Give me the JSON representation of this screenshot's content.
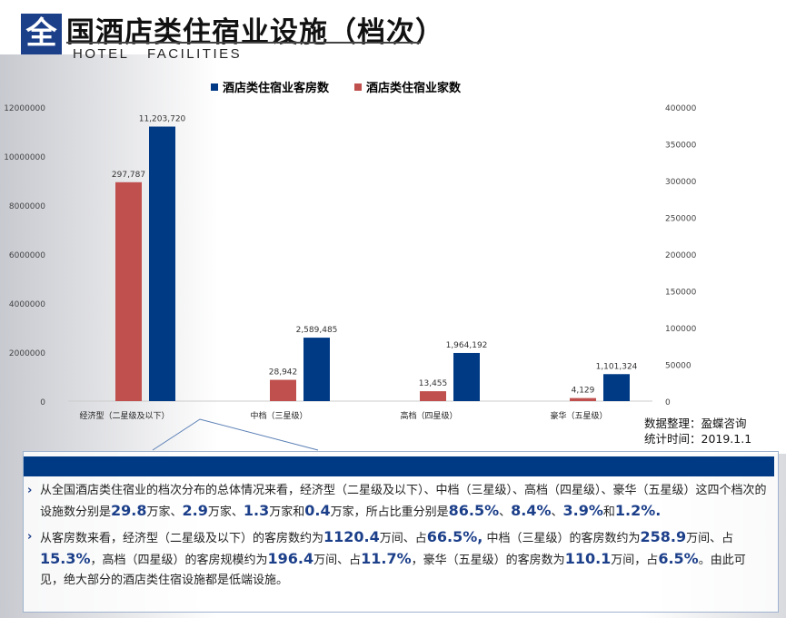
{
  "header": {
    "logo_char": "全",
    "title": "国酒店类住宿业设施（档次）",
    "subtitle": "HOTEL   FACILITIES"
  },
  "colors": {
    "rooms": "#003a85",
    "establishments": "#c0504d"
  },
  "chart_data": {
    "type": "bar",
    "categories": [
      "经济型（二星级及以下）",
      "中档（三星级）",
      "高档（四星级）",
      "豪华（五星级）"
    ],
    "series": [
      {
        "name": "酒店类住宿业家数",
        "axis": "right",
        "values": [
          297787,
          28942,
          13455,
          4129
        ],
        "labels": [
          "297,787",
          "28,942",
          "13,455",
          "4,129"
        ]
      },
      {
        "name": "酒店类住宿业客房数",
        "axis": "left",
        "values": [
          11203720,
          2589485,
          1964192,
          1101324
        ],
        "labels": [
          "11,203,720",
          "2,589,485",
          "1,964,192",
          "1,101,324"
        ]
      }
    ],
    "legend_order": [
      "酒店类住宿业客房数",
      "酒店类住宿业家数"
    ],
    "legend_position": "top",
    "y_left": {
      "ylim": [
        0,
        12000000
      ],
      "ticks": [
        "0",
        "2000000",
        "4000000",
        "6000000",
        "8000000",
        "10000000",
        "12000000"
      ]
    },
    "y_right": {
      "ylim": [
        0,
        400000
      ],
      "ticks": [
        "0",
        "50000",
        "100000",
        "150000",
        "200000",
        "250000",
        "300000",
        "350000",
        "400000"
      ]
    }
  },
  "source": {
    "line1": "数据整理：盈蝶咨询",
    "line2": "统计时间：2019.1.1"
  },
  "bullets": [
    [
      [
        "从全国酒店类住宿业的档次分布的总体情况来看，经济型（二星级及以下）、中档（三星级）、高档（四星级）、豪华（五星级）这四个档次的设施数分别是",
        0
      ],
      [
        "29.8",
        1
      ],
      [
        "万家、",
        0
      ],
      [
        "2.9",
        1
      ],
      [
        "万家、",
        0
      ],
      [
        "1.3",
        1
      ],
      [
        "万家和",
        0
      ],
      [
        "0.4",
        1
      ],
      [
        "万家，所占比重分别是",
        0
      ],
      [
        "86.5%",
        1
      ],
      [
        "、",
        0
      ],
      [
        "8.4%",
        1
      ],
      [
        "、",
        0
      ],
      [
        "3.9%",
        1
      ],
      [
        "和",
        0
      ],
      [
        "1.2%.",
        1
      ]
    ],
    [
      [
        "从客房数来看，经济型（二星级及以下）的客房数约为",
        0
      ],
      [
        "1120.4",
        1
      ],
      [
        "万间、占",
        0
      ],
      [
        "66.5%,",
        1
      ],
      [
        " 中档（三星级）的客房数约为",
        0
      ],
      [
        "258.9",
        1
      ],
      [
        "万间、占",
        0
      ],
      [
        "15.3%",
        1
      ],
      [
        "，高档（四星级）的客房规模约为",
        0
      ],
      [
        "196.4",
        1
      ],
      [
        "万间、占",
        0
      ],
      [
        "11.7%",
        1
      ],
      [
        "，豪华（五星级）的客房数为",
        0
      ],
      [
        "110.1",
        1
      ],
      [
        "万间，占",
        0
      ],
      [
        "6.5%",
        1
      ],
      [
        "。由此可见，绝大部分的酒店类住宿设施都是低端设施。",
        0
      ]
    ]
  ]
}
